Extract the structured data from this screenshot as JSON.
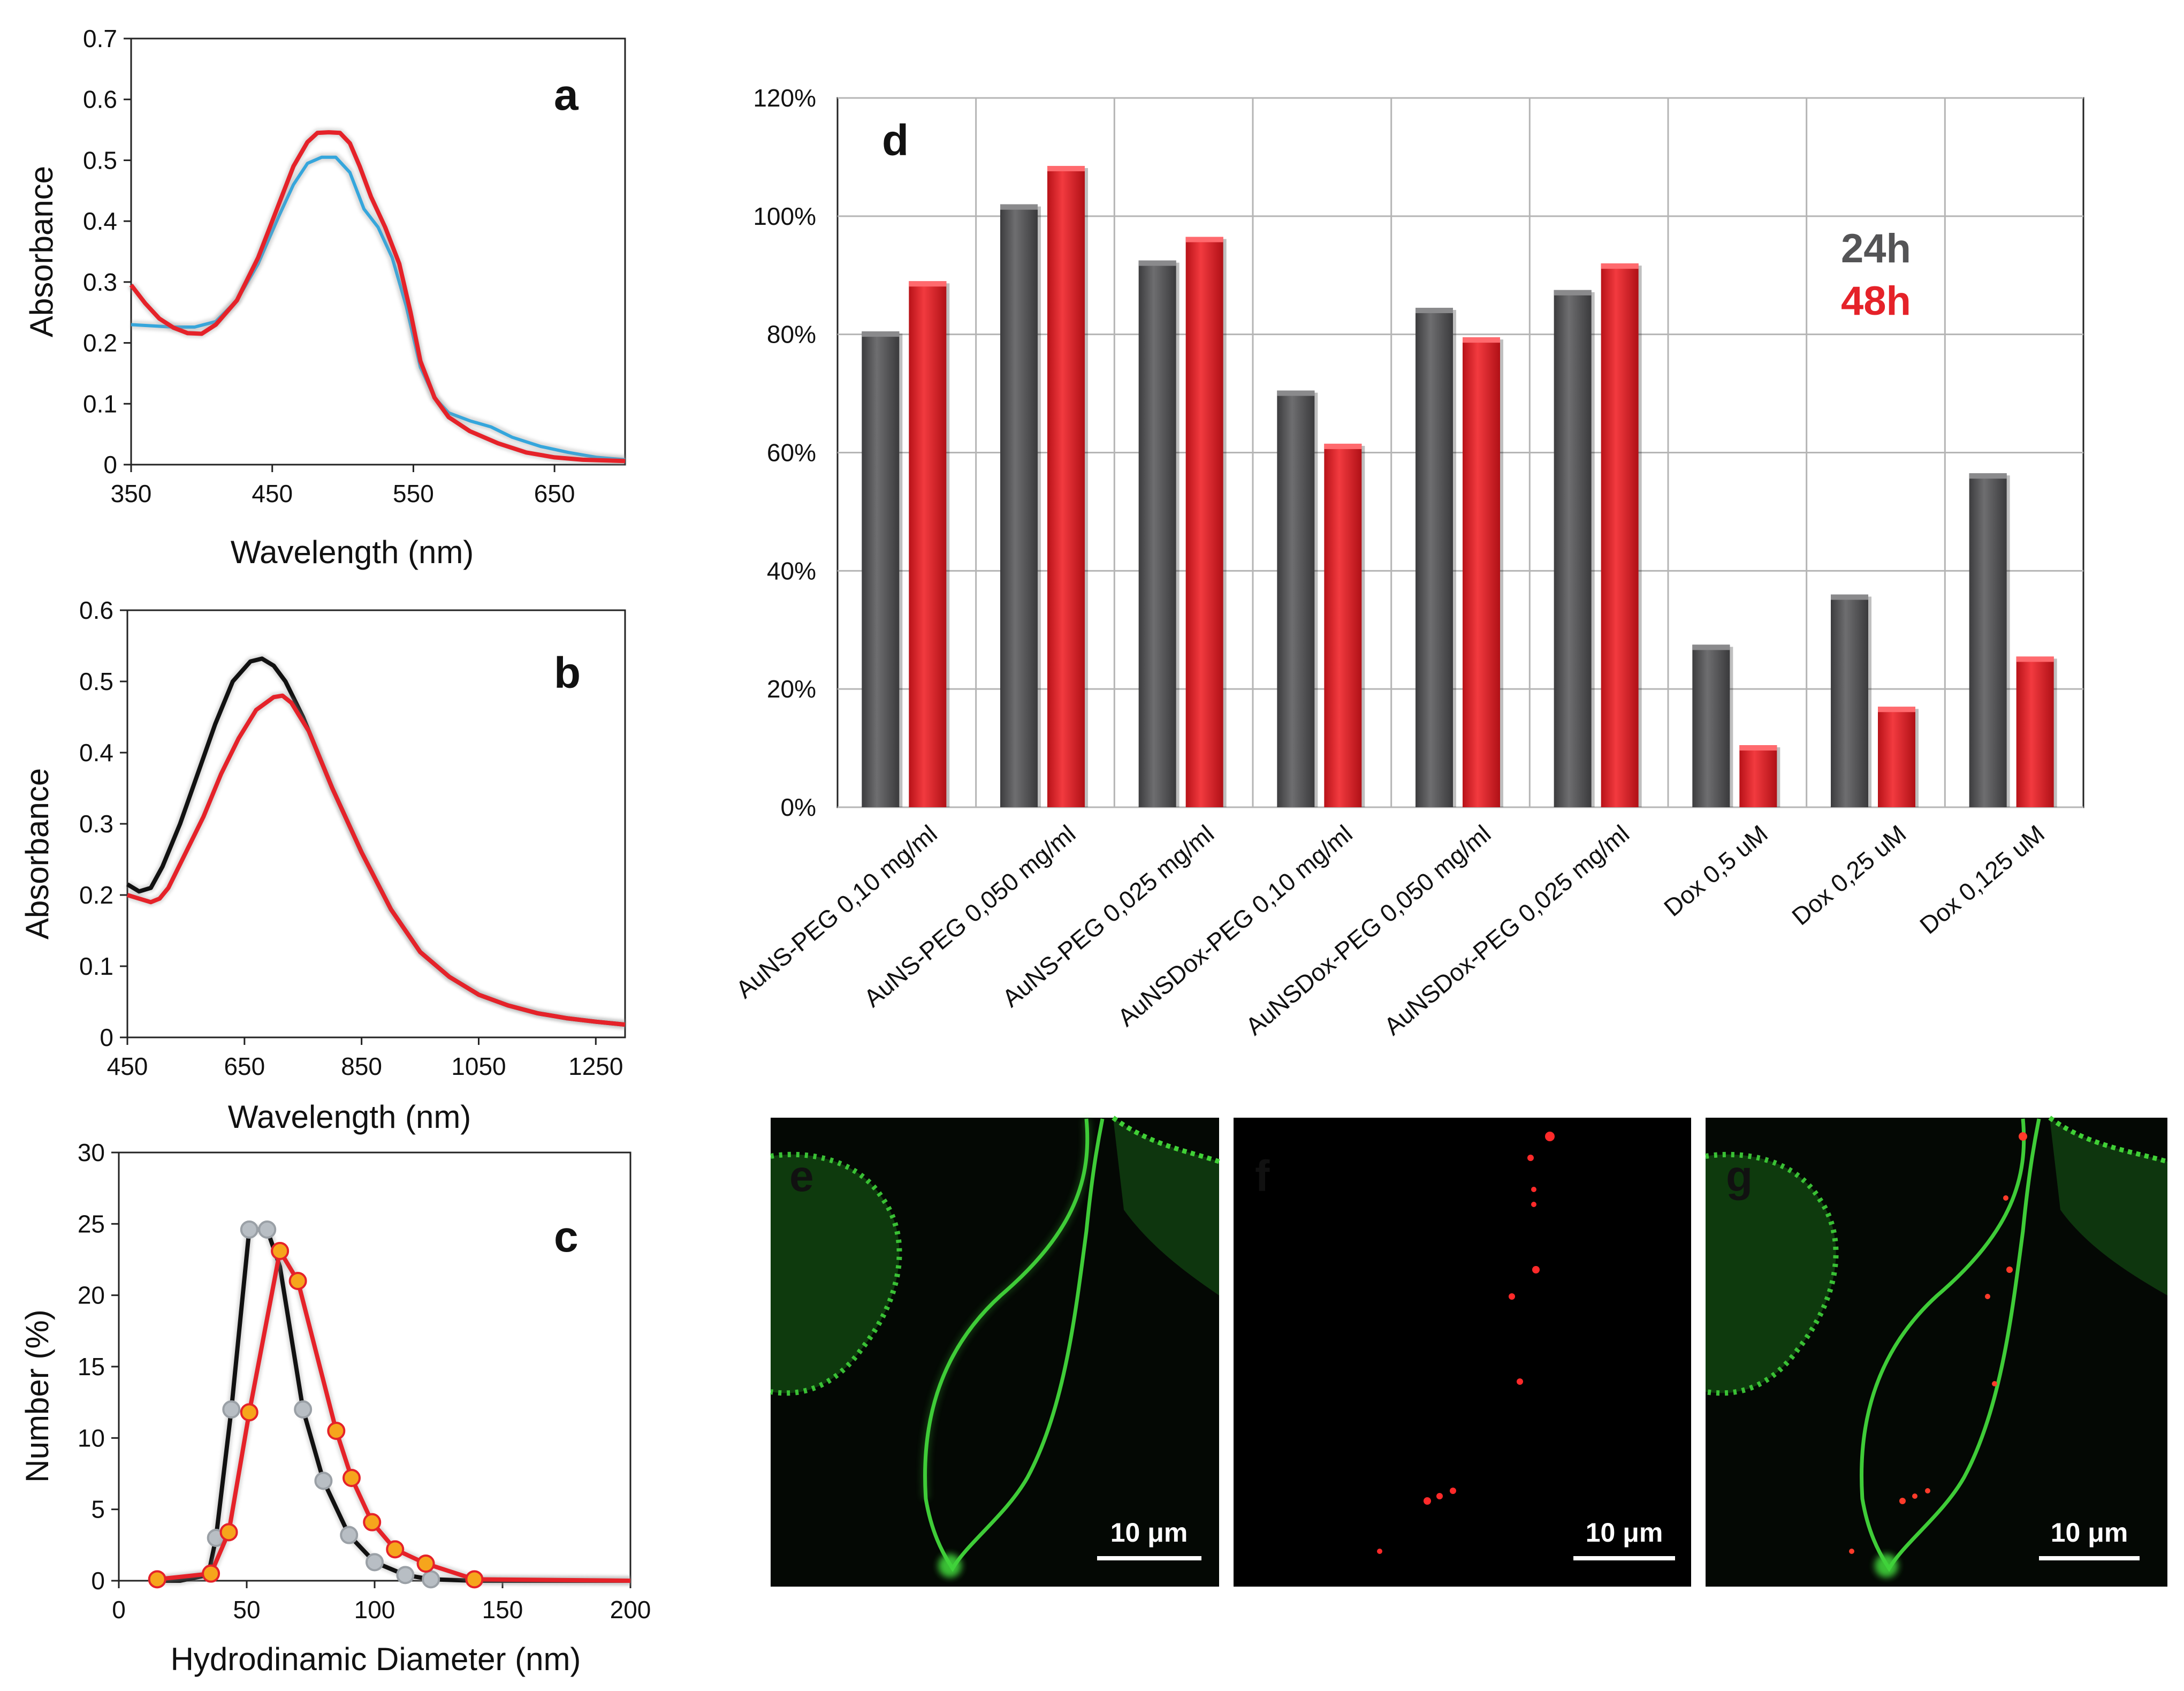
{
  "colors": {
    "red": "#e52229",
    "blue": "#35a6dc",
    "black": "#111111",
    "gray_bar": "#545456",
    "gray_marker": "#b8bec4",
    "orange_marker": "#f6a51c",
    "green_fluor": "#2fbf2a",
    "grid": "#bdbdbd"
  },
  "chart_data": [
    {
      "id": "a",
      "type": "line",
      "panel_label": "a",
      "title": "",
      "xlabel": "Wavelength (nm)",
      "ylabel": "Absorbance",
      "xlim": [
        350,
        700
      ],
      "ylim": [
        0,
        0.7
      ],
      "xticks": [
        "350",
        "450",
        "550",
        "650"
      ],
      "yticks": [
        "0",
        "0.1",
        "0.2",
        "0.3",
        "0.4",
        "0.5",
        "0.6",
        "0.7"
      ],
      "series": [
        {
          "name": "blue",
          "color": "#35a6dc",
          "x": [
            350,
            365,
            380,
            395,
            410,
            425,
            440,
            455,
            465,
            475,
            485,
            495,
            505,
            515,
            525,
            535,
            545,
            555,
            565,
            575,
            590,
            605,
            620,
            640,
            660,
            680,
            700
          ],
          "y": [
            0.23,
            0.228,
            0.226,
            0.226,
            0.235,
            0.27,
            0.33,
            0.41,
            0.46,
            0.495,
            0.505,
            0.505,
            0.48,
            0.42,
            0.39,
            0.34,
            0.26,
            0.16,
            0.11,
            0.085,
            0.072,
            0.062,
            0.045,
            0.03,
            0.02,
            0.012,
            0.008
          ]
        },
        {
          "name": "red",
          "color": "#e52229",
          "x": [
            350,
            360,
            370,
            380,
            390,
            400,
            410,
            425,
            440,
            455,
            465,
            475,
            482,
            490,
            498,
            505,
            512,
            520,
            530,
            540,
            548,
            555,
            565,
            575,
            590,
            610,
            630,
            650,
            670,
            700
          ],
          "y": [
            0.295,
            0.265,
            0.24,
            0.225,
            0.216,
            0.215,
            0.23,
            0.27,
            0.34,
            0.43,
            0.49,
            0.53,
            0.545,
            0.546,
            0.545,
            0.528,
            0.49,
            0.44,
            0.39,
            0.33,
            0.25,
            0.17,
            0.11,
            0.078,
            0.055,
            0.035,
            0.02,
            0.012,
            0.008,
            0.006
          ]
        }
      ]
    },
    {
      "id": "b",
      "type": "line",
      "panel_label": "b",
      "title": "",
      "xlabel": "Wavelength (nm)",
      "ylabel": "Absorbance",
      "xlim": [
        450,
        1300
      ],
      "ylim": [
        0,
        0.6
      ],
      "xticks": [
        "450",
        "650",
        "850",
        "1050",
        "1250"
      ],
      "yticks": [
        "0",
        "0.1",
        "0.2",
        "0.3",
        "0.4",
        "0.5",
        "0.6"
      ],
      "series": [
        {
          "name": "black",
          "color": "#111111",
          "x": [
            450,
            470,
            490,
            510,
            540,
            570,
            600,
            630,
            660,
            680,
            700,
            720,
            750,
            800,
            850,
            900,
            950,
            1000,
            1050,
            1100,
            1150,
            1200,
            1250,
            1300
          ],
          "y": [
            0.215,
            0.205,
            0.21,
            0.24,
            0.3,
            0.37,
            0.44,
            0.5,
            0.528,
            0.532,
            0.522,
            0.5,
            0.45,
            0.35,
            0.26,
            0.18,
            0.12,
            0.085,
            0.06,
            0.045,
            0.034,
            0.027,
            0.022,
            0.018
          ]
        },
        {
          "name": "red",
          "color": "#e52229",
          "x": [
            450,
            470,
            490,
            505,
            520,
            550,
            580,
            610,
            640,
            670,
            700,
            715,
            730,
            760,
            800,
            850,
            900,
            950,
            1000,
            1050,
            1100,
            1150,
            1200,
            1250,
            1300
          ],
          "y": [
            0.2,
            0.195,
            0.19,
            0.195,
            0.21,
            0.26,
            0.31,
            0.37,
            0.42,
            0.46,
            0.478,
            0.48,
            0.47,
            0.43,
            0.35,
            0.26,
            0.18,
            0.12,
            0.085,
            0.06,
            0.045,
            0.034,
            0.027,
            0.022,
            0.018
          ]
        }
      ]
    },
    {
      "id": "c",
      "type": "line",
      "panel_label": "c",
      "title": "",
      "xlabel": "Hydrodinamic Diameter (nm)",
      "ylabel": "Number (%)",
      "xlim": [
        0,
        200
      ],
      "ylim": [
        0,
        30
      ],
      "xticks": [
        "0",
        "50",
        "100",
        "150",
        "200"
      ],
      "yticks": [
        "0",
        "5",
        "10",
        "15",
        "20",
        "25",
        "30"
      ],
      "series": [
        {
          "name": "black",
          "color": "#111111",
          "marker": "#b8bec4",
          "x": [
            15,
            24,
            35,
            38,
            44,
            51,
            58,
            63,
            72,
            80,
            90,
            100,
            112,
            122,
            139,
            150,
            200
          ],
          "y": [
            0,
            0,
            0.4,
            3,
            12,
            24.6,
            24.6,
            22,
            12,
            7,
            3.2,
            1.3,
            0.4,
            0.1,
            0,
            0,
            0
          ],
          "marker_idx": [
            3,
            4,
            5,
            6,
            8,
            9,
            10,
            11,
            12,
            13
          ]
        },
        {
          "name": "red",
          "color": "#e52229",
          "marker": "#f6a51c",
          "x": [
            15,
            36,
            43,
            51,
            63,
            70,
            85,
            91,
            99,
            108,
            120,
            139,
            200
          ],
          "y": [
            0.1,
            0.5,
            3.4,
            11.8,
            23.1,
            21,
            10.5,
            7.2,
            4.1,
            2.2,
            1.2,
            0.1,
            0
          ],
          "marker_idx": [
            0,
            1,
            2,
            3,
            4,
            5,
            6,
            7,
            8,
            9,
            10,
            11
          ]
        }
      ]
    },
    {
      "id": "d",
      "type": "bar",
      "panel_label": "d",
      "title": "",
      "xlabel": "",
      "ylabel": "",
      "ylim": [
        0,
        120
      ],
      "yticks": [
        "0%",
        "20%",
        "40%",
        "60%",
        "80%",
        "100%",
        "120%"
      ],
      "categories": [
        "AuNS-PEG 0,10 mg/ml",
        "AuNS-PEG 0,050 mg/ml",
        "AuNS-PEG 0,025 mg/ml",
        "AuNSDox-PEG 0,10 mg/ml",
        "AuNSDox-PEG 0,050 mg/ml",
        "AuNSDox-PEG 0,025 mg/ml",
        "Dox 0,5 uM",
        "Dox 0,25 uM",
        "Dox 0,125 uM"
      ],
      "series": [
        {
          "name": "24h",
          "color": "#545456",
          "values": [
            80.5,
            102,
            92.5,
            70.5,
            84.5,
            87.5,
            27.5,
            36,
            56.5
          ]
        },
        {
          "name": "48h",
          "color": "#e52229",
          "values": [
            89,
            108.5,
            96.5,
            61.5,
            79.5,
            92,
            10.5,
            17,
            25.5
          ]
        }
      ],
      "legend": {
        "position": "top-right",
        "items": [
          "24h",
          "48h"
        ]
      }
    }
  ],
  "micrographs": [
    {
      "panel_label": "e",
      "scale_bar": "10 μm"
    },
    {
      "panel_label": "f",
      "scale_bar": "10 μm"
    },
    {
      "panel_label": "g",
      "scale_bar": "10 μm"
    }
  ]
}
